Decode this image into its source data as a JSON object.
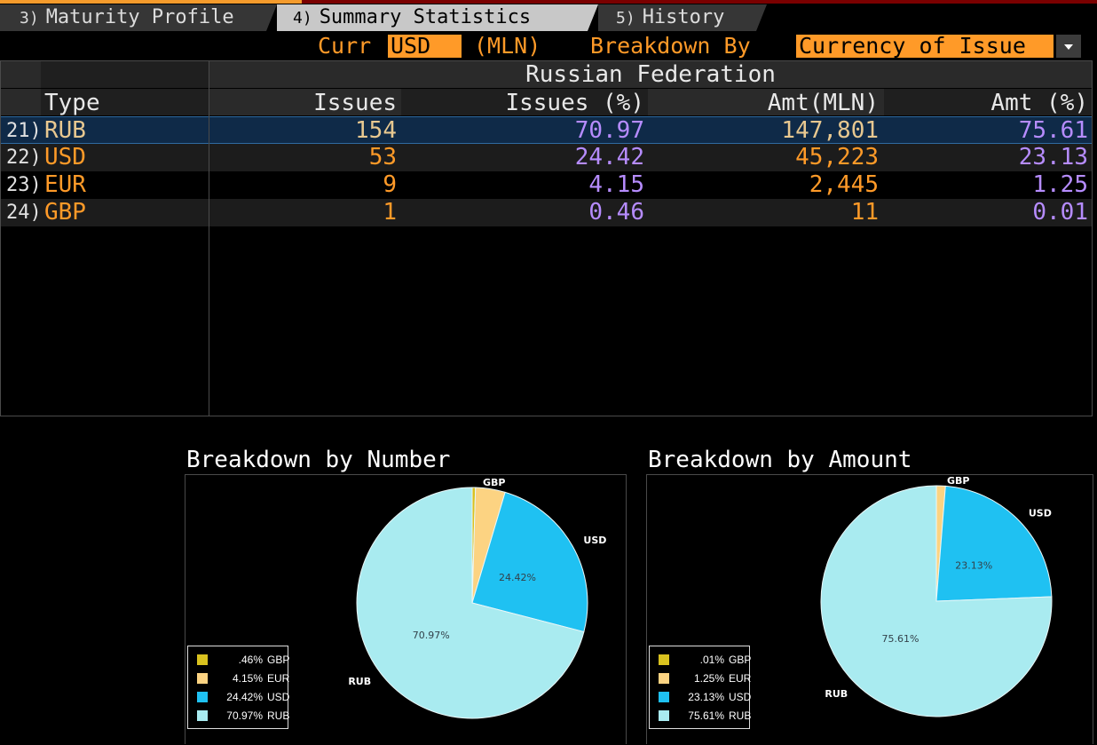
{
  "tabs": [
    {
      "num": "3)",
      "label": "Maturity Profile"
    },
    {
      "num": "4)",
      "label": "Summary Statistics"
    },
    {
      "num": "5)",
      "label": "History"
    }
  ],
  "header": {
    "curr_label": "Curr",
    "curr_value": "USD",
    "unit": "(MLN)",
    "breakdown_label": "Breakdown By",
    "breakdown_value": "Currency of Issue"
  },
  "table": {
    "group_title": "Russian Federation",
    "columns": [
      "Type",
      "Issues",
      "Issues (%)",
      "Amt(MLN)",
      "Amt (%)"
    ],
    "rows": [
      {
        "idx": "21)",
        "type": "RUB",
        "issues": "154",
        "issues_pct": "70.97",
        "amt": "147,801",
        "amt_pct": "75.61"
      },
      {
        "idx": "22)",
        "type": "USD",
        "issues": "53",
        "issues_pct": "24.42",
        "amt": "45,223",
        "amt_pct": "23.13"
      },
      {
        "idx": "23)",
        "type": "EUR",
        "issues": "9",
        "issues_pct": "4.15",
        "amt": "2,445",
        "amt_pct": "1.25"
      },
      {
        "idx": "24)",
        "type": "GBP",
        "issues": "1",
        "issues_pct": "0.46",
        "amt": "11",
        "amt_pct": "0.01"
      }
    ]
  },
  "colors": {
    "GBP": "#d9c21f",
    "EUR": "#fcd382",
    "USD": "#1fc1f2",
    "RUB": "#a9ebf0"
  },
  "chart_data": [
    {
      "type": "pie",
      "title": "Breakdown by Number",
      "labels": [
        "GBP",
        "EUR",
        "USD",
        "RUB"
      ],
      "values": [
        0.46,
        4.15,
        24.42,
        70.97
      ],
      "slice_labels": {
        "USD": "24.42%",
        "RUB": "70.97%"
      },
      "legend": [
        {
          "pct": ".46%",
          "name": "GBP"
        },
        {
          "pct": "4.15%",
          "name": "EUR"
        },
        {
          "pct": "24.42%",
          "name": "USD"
        },
        {
          "pct": "70.97%",
          "name": "RUB"
        }
      ],
      "legend_position": "bottom-left"
    },
    {
      "type": "pie",
      "title": "Breakdown by Amount",
      "labels": [
        "GBP",
        "EUR",
        "USD",
        "RUB"
      ],
      "values": [
        0.01,
        1.25,
        23.13,
        75.61
      ],
      "slice_labels": {
        "USD": "23.13%",
        "RUB": "75.61%"
      },
      "legend": [
        {
          "pct": ".01%",
          "name": "GBP"
        },
        {
          "pct": "1.25%",
          "name": "EUR"
        },
        {
          "pct": "23.13%",
          "name": "USD"
        },
        {
          "pct": "75.61%",
          "name": "RUB"
        }
      ],
      "legend_position": "bottom-left"
    }
  ]
}
